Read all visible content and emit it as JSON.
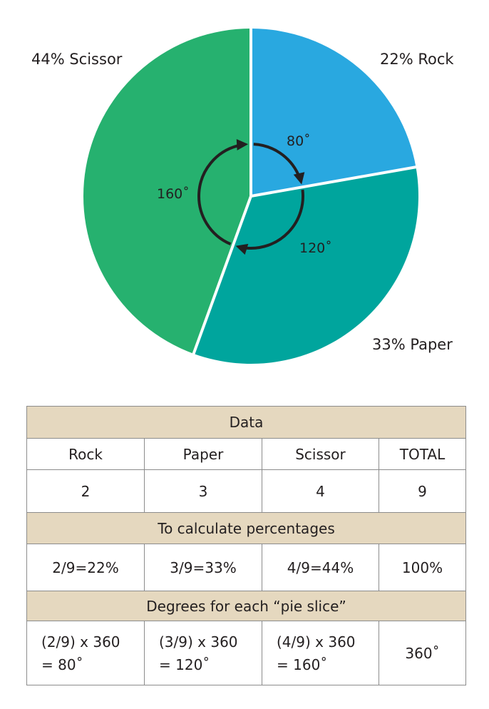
{
  "chart_data": {
    "type": "pie",
    "slices": [
      {
        "name": "Rock",
        "label": "22% Rock",
        "percent": 22,
        "degrees": 80,
        "angle_label": "80˚",
        "color": "#29a8e0"
      },
      {
        "name": "Paper",
        "label": "33% Paper",
        "percent": 33,
        "degrees": 120,
        "angle_label": "120˚",
        "color": "#00a59d"
      },
      {
        "name": "Scissor",
        "label": "44% Scissor",
        "percent": 44,
        "degrees": 160,
        "angle_label": "160˚",
        "color": "#26b16f"
      }
    ],
    "start_angle_deg": 0,
    "direction": "clockwise from top",
    "separator_color": "#ffffff",
    "arrow_color": "#231f20"
  },
  "table": {
    "title": "Data",
    "headers": [
      "Rock",
      "Paper",
      "Scissor",
      "TOTAL"
    ],
    "counts": [
      "2",
      "3",
      "4",
      "9"
    ],
    "pct_title": "To calculate percentages",
    "pcts": [
      "2/9=22%",
      "3/9=33%",
      "4/9=44%",
      "100%"
    ],
    "deg_title": "Degrees for each “pie slice”",
    "degree_rows": [
      {
        "line1": "(2/9) x 360",
        "line2": "= 80˚"
      },
      {
        "line1": "(3/9) x 360",
        "line2": "= 120˚"
      },
      {
        "line1": "(4/9) x 360",
        "line2": "= 160˚"
      }
    ],
    "degree_total": "360˚",
    "header_bg": "#e5d8bf",
    "border_color": "#8c8c8c"
  }
}
